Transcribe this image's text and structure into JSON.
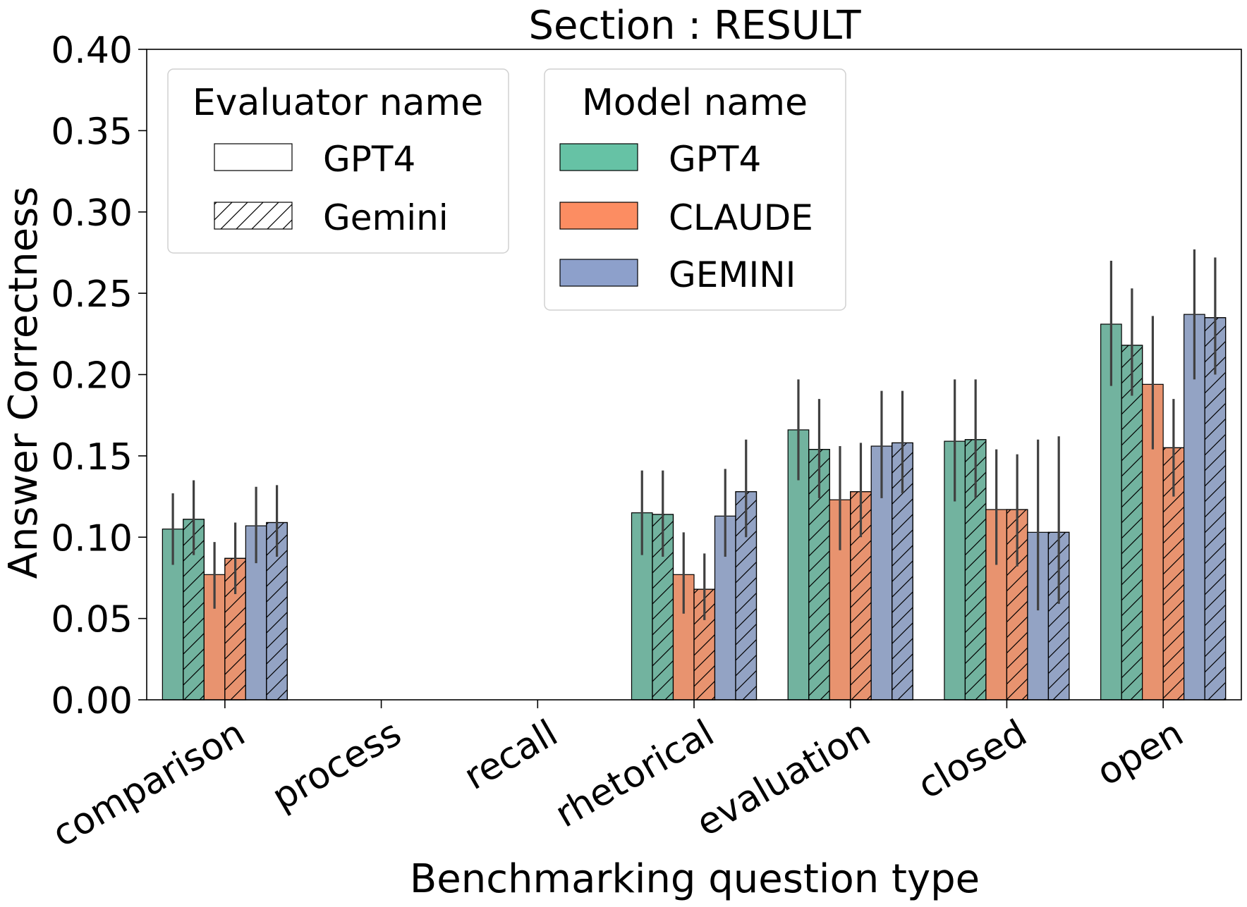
{
  "chart_data": {
    "type": "bar",
    "title": "Section : RESULT",
    "xlabel": "Benchmarking question type",
    "ylabel": "Answer Correctness",
    "ylim": [
      0,
      0.4
    ],
    "yticks": [
      "0.00",
      "0.05",
      "0.10",
      "0.15",
      "0.20",
      "0.25",
      "0.30",
      "0.35",
      "0.40"
    ],
    "categories": [
      "comparison",
      "process",
      "recall",
      "rhetorical",
      "evaluation",
      "closed",
      "open"
    ],
    "grid": false,
    "legends": [
      {
        "title": "Evaluator name",
        "placement": "top-left",
        "entries": [
          {
            "label": "GPT4",
            "hatch": "none"
          },
          {
            "label": "Gemini",
            "hatch": "diagonal"
          }
        ]
      },
      {
        "title": "Model name",
        "placement": "top-center",
        "entries": [
          {
            "label": "GPT4",
            "color": "#66c2a5"
          },
          {
            "label": "CLAUDE",
            "color": "#fc8d62"
          },
          {
            "label": "GEMINI",
            "color": "#8da0cb"
          }
        ]
      }
    ],
    "bar_colors": {
      "GPT4": "#72b39f",
      "CLAUDE": "#e8936f",
      "GEMINI": "#93a3c4"
    },
    "series": [
      {
        "model": "GPT4",
        "evaluator": "GPT4",
        "values": [
          0.105,
          null,
          null,
          0.115,
          0.166,
          0.159,
          0.231
        ],
        "err_low": [
          0.083,
          null,
          null,
          0.089,
          0.135,
          0.122,
          0.193
        ],
        "err_high": [
          0.127,
          null,
          null,
          0.141,
          0.197,
          0.197,
          0.27
        ]
      },
      {
        "model": "GPT4",
        "evaluator": "Gemini",
        "values": [
          0.111,
          null,
          null,
          0.114,
          0.154,
          0.16,
          0.218
        ],
        "err_low": [
          0.089,
          null,
          null,
          0.088,
          0.124,
          0.124,
          0.187
        ],
        "err_high": [
          0.135,
          null,
          null,
          0.141,
          0.185,
          0.197,
          0.253
        ]
      },
      {
        "model": "CLAUDE",
        "evaluator": "GPT4",
        "values": [
          0.077,
          null,
          null,
          0.077,
          0.123,
          0.117,
          0.194
        ],
        "err_low": [
          0.056,
          null,
          null,
          0.053,
          0.092,
          0.083,
          0.154
        ],
        "err_high": [
          0.097,
          null,
          null,
          0.103,
          0.156,
          0.154,
          0.236
        ]
      },
      {
        "model": "CLAUDE",
        "evaluator": "Gemini",
        "values": [
          0.087,
          null,
          null,
          0.068,
          0.128,
          0.117,
          0.155
        ],
        "err_low": [
          0.065,
          null,
          null,
          0.049,
          0.1,
          0.082,
          0.125
        ],
        "err_high": [
          0.109,
          null,
          null,
          0.09,
          0.158,
          0.151,
          0.185
        ]
      },
      {
        "model": "GEMINI",
        "evaluator": "GPT4",
        "values": [
          0.107,
          null,
          null,
          0.113,
          0.156,
          0.103,
          0.237
        ],
        "err_low": [
          0.084,
          null,
          null,
          0.088,
          0.124,
          0.055,
          0.197
        ],
        "err_high": [
          0.131,
          null,
          null,
          0.142,
          0.19,
          0.16,
          0.277
        ]
      },
      {
        "model": "GEMINI",
        "evaluator": "Gemini",
        "values": [
          0.109,
          null,
          null,
          0.128,
          0.158,
          0.103,
          0.235
        ],
        "err_low": [
          0.088,
          null,
          null,
          0.1,
          0.127,
          0.059,
          0.2
        ],
        "err_high": [
          0.132,
          null,
          null,
          0.16,
          0.19,
          0.162,
          0.272
        ]
      }
    ]
  }
}
